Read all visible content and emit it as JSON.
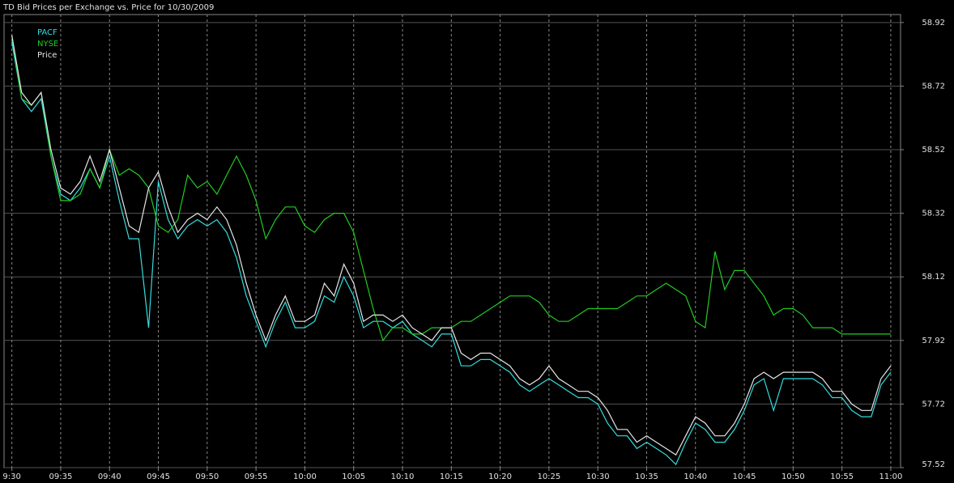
{
  "chart_data": {
    "type": "line",
    "title": "TD Bid Prices per Exchange vs. Price for 10/30/2009",
    "x": [
      0,
      1,
      2,
      3,
      4,
      5,
      6,
      7,
      8,
      9,
      10,
      11,
      12,
      13,
      14,
      15,
      16,
      17,
      18,
      19,
      20,
      21,
      22,
      23,
      24,
      25,
      26,
      27,
      28,
      29,
      30,
      31,
      32,
      33,
      34,
      35,
      36,
      37,
      38,
      39,
      40,
      41,
      42,
      43,
      44,
      45,
      46,
      47,
      48,
      49,
      50,
      51,
      52,
      53,
      54,
      55,
      56,
      57,
      58,
      59,
      60,
      61,
      62,
      63,
      64,
      65,
      66,
      67,
      68,
      69,
      70,
      71,
      72,
      73,
      74,
      75,
      76,
      77,
      78,
      79,
      80,
      81,
      82,
      83,
      84,
      85,
      86,
      87,
      88,
      89,
      90
    ],
    "xlim": [
      -0.8,
      91
    ],
    "xticks": [
      {
        "value": 0,
        "label": "9:30"
      },
      {
        "value": 5,
        "label": "09:35"
      },
      {
        "value": 10,
        "label": "09:40"
      },
      {
        "value": 15,
        "label": "09:45"
      },
      {
        "value": 20,
        "label": "09:50"
      },
      {
        "value": 25,
        "label": "09:55"
      },
      {
        "value": 30,
        "label": "10:00"
      },
      {
        "value": 35,
        "label": "10:05"
      },
      {
        "value": 40,
        "label": "10:10"
      },
      {
        "value": 45,
        "label": "10:15"
      },
      {
        "value": 50,
        "label": "10:20"
      },
      {
        "value": 55,
        "label": "10:25"
      },
      {
        "value": 60,
        "label": "10:30"
      },
      {
        "value": 65,
        "label": "10:35"
      },
      {
        "value": 70,
        "label": "10:40"
      },
      {
        "value": 75,
        "label": "10:45"
      },
      {
        "value": 80,
        "label": "10:50"
      },
      {
        "value": 85,
        "label": "10:55"
      },
      {
        "value": 90,
        "label": "11:00"
      }
    ],
    "ylim": [
      57.52,
      58.945
    ],
    "yticks": [
      57.52,
      57.72,
      57.92,
      58.12,
      58.32,
      58.52,
      58.72,
      58.92
    ],
    "grid": true,
    "legend": "top-left",
    "series": [
      {
        "name": "PACF",
        "color": "#33dddd",
        "values": [
          58.86,
          58.68,
          58.64,
          58.68,
          58.5,
          58.38,
          58.36,
          58.4,
          58.46,
          58.4,
          58.5,
          58.36,
          58.24,
          58.24,
          57.96,
          58.42,
          58.3,
          58.24,
          58.28,
          58.3,
          58.28,
          58.3,
          58.26,
          58.18,
          58.06,
          57.98,
          57.9,
          57.98,
          58.04,
          57.96,
          57.96,
          57.98,
          58.06,
          58.04,
          58.12,
          58.06,
          57.96,
          57.98,
          57.98,
          57.96,
          57.98,
          57.94,
          57.92,
          57.9,
          57.94,
          57.94,
          57.84,
          57.84,
          57.86,
          57.86,
          57.84,
          57.82,
          57.78,
          57.76,
          57.78,
          57.8,
          57.78,
          57.76,
          57.74,
          57.74,
          57.72,
          57.66,
          57.62,
          57.62,
          57.58,
          57.6,
          57.58,
          57.56,
          57.53,
          57.6,
          57.66,
          57.64,
          57.6,
          57.6,
          57.64,
          57.7,
          57.78,
          57.8,
          57.7,
          57.8,
          57.8,
          57.8,
          57.8,
          57.78,
          57.74,
          57.74,
          57.7,
          57.68,
          57.68,
          57.78,
          57.82
        ]
      },
      {
        "name": "NYSE",
        "color": "#22cc22",
        "values": [
          58.88,
          58.68,
          58.66,
          58.7,
          58.5,
          58.36,
          58.36,
          58.38,
          58.46,
          58.4,
          58.52,
          58.44,
          58.46,
          58.44,
          58.4,
          58.28,
          58.26,
          58.3,
          58.44,
          58.4,
          58.42,
          58.38,
          58.44,
          58.5,
          58.44,
          58.36,
          58.24,
          58.3,
          58.34,
          58.34,
          58.28,
          58.26,
          58.3,
          58.32,
          58.32,
          58.26,
          58.14,
          58.02,
          57.92,
          57.96,
          57.96,
          57.94,
          57.94,
          57.96,
          57.96,
          57.96,
          57.98,
          57.98,
          58.0,
          58.02,
          58.04,
          58.06,
          58.06,
          58.06,
          58.04,
          58.0,
          57.98,
          57.98,
          58.0,
          58.02,
          58.02,
          58.02,
          58.02,
          58.04,
          58.06,
          58.06,
          58.08,
          58.1,
          58.08,
          58.06,
          57.98,
          57.96,
          58.2,
          58.08,
          58.14,
          58.14,
          58.1,
          58.06,
          58.0,
          58.02,
          58.02,
          58.0,
          57.96,
          57.96,
          57.96,
          57.94,
          57.94,
          57.94,
          57.94,
          57.94,
          57.94
        ]
      },
      {
        "name": "Price",
        "color": "#e6e6e6",
        "values": [
          58.88,
          58.7,
          58.66,
          58.7,
          58.52,
          58.4,
          58.38,
          58.42,
          58.5,
          58.42,
          58.52,
          58.4,
          58.28,
          58.26,
          58.4,
          58.45,
          58.34,
          58.26,
          58.3,
          58.32,
          58.3,
          58.34,
          58.3,
          58.22,
          58.1,
          58.0,
          57.92,
          58.0,
          58.06,
          57.98,
          57.98,
          58.0,
          58.1,
          58.06,
          58.16,
          58.1,
          57.98,
          58.0,
          58.0,
          57.98,
          58.0,
          57.96,
          57.94,
          57.92,
          57.96,
          57.96,
          57.88,
          57.86,
          57.88,
          57.88,
          57.86,
          57.84,
          57.8,
          57.78,
          57.8,
          57.84,
          57.8,
          57.78,
          57.76,
          57.76,
          57.74,
          57.7,
          57.64,
          57.64,
          57.6,
          57.62,
          57.6,
          57.58,
          57.56,
          57.62,
          57.68,
          57.66,
          57.62,
          57.62,
          57.66,
          57.72,
          57.8,
          57.82,
          57.8,
          57.82,
          57.82,
          57.82,
          57.82,
          57.8,
          57.76,
          57.76,
          57.72,
          57.7,
          57.7,
          57.8,
          57.84
        ]
      }
    ]
  }
}
